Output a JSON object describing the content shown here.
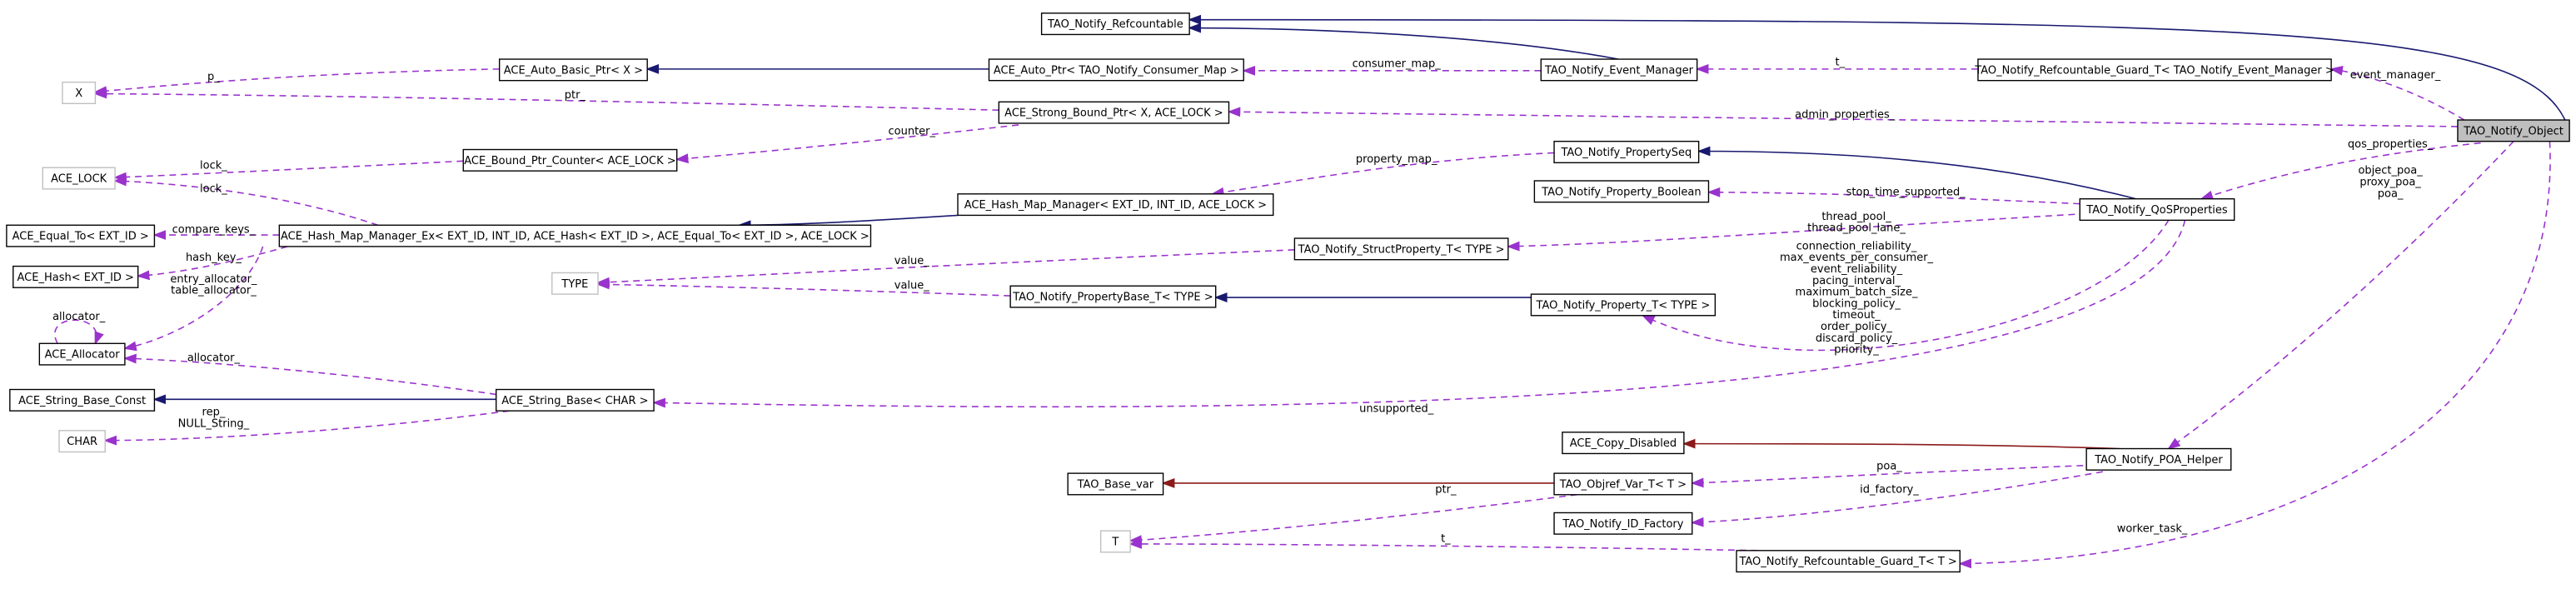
{
  "nodes": [
    {
      "label": "TAO_Notify_Refcountable"
    },
    {
      "label": "X"
    },
    {
      "label": "ACE_Auto_Basic_Ptr< X >"
    },
    {
      "label": "ACE_Auto_Ptr< TAO_Notify_Consumer_Map >"
    },
    {
      "label": "TAO_Notify_Event_Manager"
    },
    {
      "label": "TAO_Notify_Refcountable_Guard_T< TAO_Notify_Event_Manager >"
    },
    {
      "label": "TAO_Notify_Object"
    },
    {
      "label": "ACE_Strong_Bound_Ptr< X, ACE_LOCK >"
    },
    {
      "label": "ACE_LOCK"
    },
    {
      "label": "ACE_Bound_Ptr_Counter< ACE_LOCK >"
    },
    {
      "label": "TAO_Notify_PropertySeq"
    },
    {
      "label": "TAO_Notify_Property_Boolean"
    },
    {
      "label": "ACE_Hash_Map_Manager< EXT_ID, INT_ID, ACE_LOCK >"
    },
    {
      "label": "TAO_Notify_QoSProperties"
    },
    {
      "label": "ACE_Equal_To< EXT_ID >"
    },
    {
      "label": "ACE_Hash_Map_Manager_Ex< EXT_ID, INT_ID, ACE_Hash< EXT_ID >, ACE_Equal_To< EXT_ID >, ACE_LOCK >"
    },
    {
      "label": "TAO_Notify_StructProperty_T< TYPE >"
    },
    {
      "label": "ACE_Hash< EXT_ID >"
    },
    {
      "label": "TYPE"
    },
    {
      "label": "TAO_Notify_PropertyBase_T< TYPE >"
    },
    {
      "label": "TAO_Notify_Property_T< TYPE >"
    },
    {
      "label": "ACE_Allocator"
    },
    {
      "label": "ACE_String_Base_Const"
    },
    {
      "label": "ACE_String_Base< CHAR >"
    },
    {
      "label": "CHAR"
    },
    {
      "label": "ACE_Copy_Disabled"
    },
    {
      "label": "TAO_Notify_POA_Helper"
    },
    {
      "label": "TAO_Base_var"
    },
    {
      "label": "TAO_Objref_Var_T< T >"
    },
    {
      "label": "TAO_Notify_ID_Factory"
    },
    {
      "label": "T"
    },
    {
      "label": "TAO_Notify_Refcountable_Guard_T< T >"
    }
  ],
  "relations": [
    {
      "labels": [
        "consumer_map_"
      ]
    },
    {
      "labels": [
        "t_"
      ]
    },
    {
      "labels": [
        "event_manager_"
      ]
    },
    {
      "labels": [
        "p_"
      ]
    },
    {
      "labels": [
        "ptr_"
      ]
    },
    {
      "labels": [
        "admin_properties_"
      ]
    },
    {
      "labels": [
        "counter_"
      ]
    },
    {
      "labels": [
        "lock_"
      ]
    },
    {
      "labels": [
        "lock_"
      ]
    },
    {
      "labels": [
        "property_map_"
      ]
    },
    {
      "labels": [
        "qos_properties_"
      ]
    },
    {
      "labels": [
        "stop_time_supported_"
      ]
    },
    {
      "labels": [
        "thread_pool_",
        "thread_pool_lane_"
      ]
    },
    {
      "labels": [
        "compare_keys_"
      ]
    },
    {
      "labels": [
        "hash_key_"
      ]
    },
    {
      "labels": [
        "entry_allocator_",
        "table_allocator_"
      ]
    },
    {
      "labels": [
        "value_"
      ]
    },
    {
      "labels": [
        "value_"
      ]
    },
    {
      "labels": [
        "connection_reliability_",
        "max_events_per_consumer_",
        "event_reliability_",
        "pacing_interval_",
        "maximum_batch_size_",
        "blocking_policy_",
        "timeout_",
        "order_policy_",
        "discard_policy_",
        "priority_"
      ]
    },
    {
      "labels": [
        "allocator_"
      ]
    },
    {
      "labels": [
        "allocator_"
      ]
    },
    {
      "labels": [
        "rep_",
        "NULL_String_"
      ]
    },
    {
      "labels": [
        "unsupported_"
      ]
    },
    {
      "labels": [
        "poa_"
      ]
    },
    {
      "labels": [
        "id_factory_"
      ]
    },
    {
      "labels": [
        "object_poa_",
        "proxy_poa_",
        "poa_"
      ]
    },
    {
      "labels": [
        "ptr_"
      ]
    },
    {
      "labels": [
        "t_"
      ]
    },
    {
      "labels": [
        "worker_task_"
      ]
    }
  ]
}
